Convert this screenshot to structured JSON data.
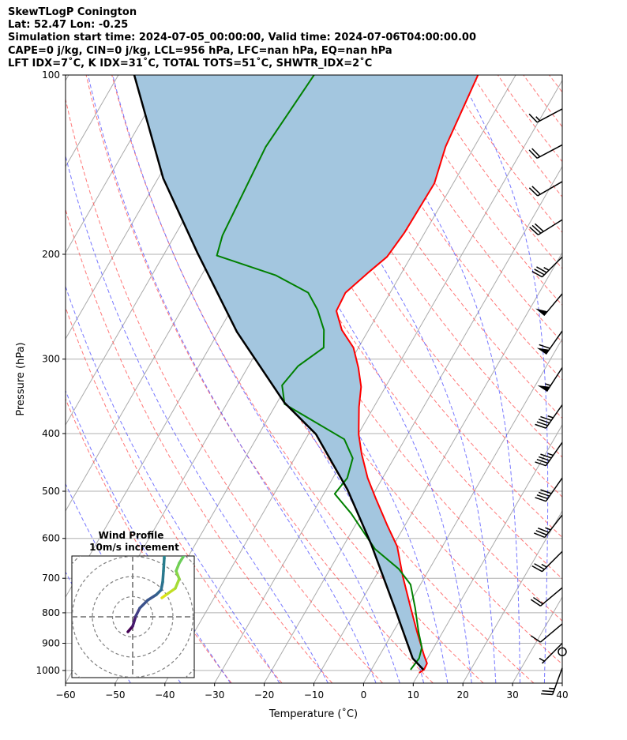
{
  "header": {
    "title": "SkewTLogP Conington",
    "location": "Lat: 52.47   Lon: -0.25",
    "times": "Simulation start time: 2024-07-05_00:00:00, Valid time: 2024-07-06T04:00:00.00",
    "indices1": "CAPE=0 j/kg, CIN=0 j/kg, LCL=956 hPa, LFC=nan hPa, EQ=nan hPa",
    "indices2": "LFT IDX=7˚C, K IDX=31˚C, TOTAL TOTS=51˚C, SHWTR_IDX=2˚C"
  },
  "chart_data": {
    "type": "line",
    "subtype": "skewt-logp",
    "xlabel": "Temperature (˚C)",
    "ylabel": "Pressure (hPa)",
    "xlim": [
      -60,
      40
    ],
    "ylim": [
      1050,
      100
    ],
    "x_ticks": [
      "−60",
      "−50",
      "−40",
      "−30",
      "−20",
      "−10",
      "0",
      "10",
      "20",
      "30",
      "40"
    ],
    "y_ticks": [
      "100",
      "200",
      "300",
      "400",
      "500",
      "600",
      "700",
      "800",
      "900",
      "1000"
    ],
    "grid": true,
    "colors": {
      "temperature": "#ff0000",
      "dewpoint": "#008000",
      "parcel": "#000000",
      "shade": "#a3c6df",
      "isotherm": "#aaaaaa",
      "dry_adiabat": "#ff5555",
      "moist_adiabat": "#5555ff"
    },
    "series": [
      {
        "name": "Temperature",
        "points": [
          [
            1009,
            10
          ],
          [
            997,
            10.6
          ],
          [
            973,
            10.5
          ],
          [
            944,
            9
          ],
          [
            861,
            4.8
          ],
          [
            786,
            0.8
          ],
          [
            695,
            -4.5
          ],
          [
            619,
            -9.1
          ],
          [
            570,
            -13.6
          ],
          [
            512,
            -19.2
          ],
          [
            475,
            -23
          ],
          [
            433,
            -27
          ],
          [
            401,
            -29.9
          ],
          [
            361,
            -33
          ],
          [
            334,
            -34.9
          ],
          [
            310,
            -37.7
          ],
          [
            287,
            -41
          ],
          [
            268,
            -45.4
          ],
          [
            249,
            -48.7
          ],
          [
            232,
            -49
          ],
          [
            215,
            -46.8
          ],
          [
            202,
            -44.8
          ],
          [
            184,
            -44.1
          ],
          [
            152,
            -43.8
          ],
          [
            132,
            -45.8
          ],
          [
            100,
            -47.6
          ]
        ]
      },
      {
        "name": "Dewpoint",
        "points": [
          [
            997,
            7.9
          ],
          [
            954,
            8.3
          ],
          [
            915,
            7.6
          ],
          [
            861,
            5.1
          ],
          [
            786,
            1.7
          ],
          [
            717,
            -2
          ],
          [
            675,
            -6.2
          ],
          [
            625,
            -13.3
          ],
          [
            545,
            -22.2
          ],
          [
            505,
            -27.8
          ],
          [
            475,
            -27.1
          ],
          [
            440,
            -28.3
          ],
          [
            409,
            -32.2
          ],
          [
            357,
            -48.3
          ],
          [
            332,
            -51
          ],
          [
            308,
            -50
          ],
          [
            287,
            -47
          ],
          [
            268,
            -49
          ],
          [
            248,
            -52.6
          ],
          [
            232,
            -56.5
          ],
          [
            217,
            -65
          ],
          [
            201,
            -79.2
          ],
          [
            186,
            -80.4
          ],
          [
            132,
            -82
          ],
          [
            100,
            -80.6
          ]
        ]
      },
      {
        "name": "Parcel",
        "points": [
          [
            997,
            10.5
          ],
          [
            954,
            7
          ],
          [
            786,
            -2.4
          ],
          [
            615,
            -14.5
          ],
          [
            497,
            -25.7
          ],
          [
            401,
            -38.5
          ],
          [
            355,
            -48.5
          ],
          [
            270,
            -66.3
          ],
          [
            199,
            -83.4
          ],
          [
            149,
            -99
          ],
          [
            100,
            -116.8
          ]
        ]
      }
    ],
    "wind_barbs": [
      {
        "p": 114,
        "spd_kt": 15,
        "dir": 242
      },
      {
        "p": 131,
        "spd_kt": 20,
        "dir": 242
      },
      {
        "p": 151,
        "spd_kt": 20,
        "dir": 240
      },
      {
        "p": 175,
        "spd_kt": 30,
        "dir": 238
      },
      {
        "p": 202,
        "spd_kt": 35,
        "dir": 225
      },
      {
        "p": 233,
        "spd_kt": 50,
        "dir": 220
      },
      {
        "p": 269,
        "spd_kt": 60,
        "dir": 215
      },
      {
        "p": 310,
        "spd_kt": 55,
        "dir": 213
      },
      {
        "p": 358,
        "spd_kt": 45,
        "dir": 215
      },
      {
        "p": 414,
        "spd_kt": 45,
        "dir": 215
      },
      {
        "p": 475,
        "spd_kt": 40,
        "dir": 215
      },
      {
        "p": 548,
        "spd_kt": 35,
        "dir": 218
      },
      {
        "p": 631,
        "spd_kt": 25,
        "dir": 225
      },
      {
        "p": 726,
        "spd_kt": 20,
        "dir": 230
      },
      {
        "p": 835,
        "spd_kt": 10,
        "dir": 230
      },
      {
        "p": 900,
        "spd_kt": 5,
        "dir": 225
      },
      {
        "p": 930,
        "spd_kt": 0,
        "dir": 0
      },
      {
        "p": 990,
        "spd_kt": 25,
        "dir": 200
      }
    ],
    "hodograph": {
      "title": "Wind Profile",
      "subtitle": "10m/s increment",
      "ring_increment_ms": 10,
      "segments": [
        {
          "uv": [
            [
              -2.4,
              -7.6
            ],
            [
              0,
              -4.8
            ],
            [
              1.6,
              0.4
            ],
            [
              3.6,
              4.4
            ],
            [
              7.6,
              8.4
            ],
            [
              12,
              11.2
            ],
            [
              14.4,
              13.6
            ],
            [
              15.2,
              17.6
            ],
            [
              15.6,
              23.2
            ],
            [
              16,
              29.6
            ],
            [
              16,
              34
            ]
          ],
          "colors": [
            "#440154",
            "#471b6e",
            "#433e85",
            "#3b528b",
            "#39568c",
            "#33638d",
            "#2d708e",
            "#2a788e",
            "#287d8e",
            "#26828e"
          ]
        },
        {
          "uv": [
            [
              14.8,
              9.6
            ],
            [
              17.6,
              11.6
            ],
            [
              21.6,
              14.4
            ],
            [
              23.6,
              19.2
            ],
            [
              22,
              23.2
            ],
            [
              23.6,
              27.2
            ],
            [
              25.6,
              30.4
            ],
            [
              27,
              34
            ]
          ],
          "colors": [
            "#dde318",
            "#c2df23",
            "#a5db36",
            "#8bd646",
            "#75d054",
            "#6ccd5a",
            "#5ec962"
          ]
        }
      ]
    }
  }
}
